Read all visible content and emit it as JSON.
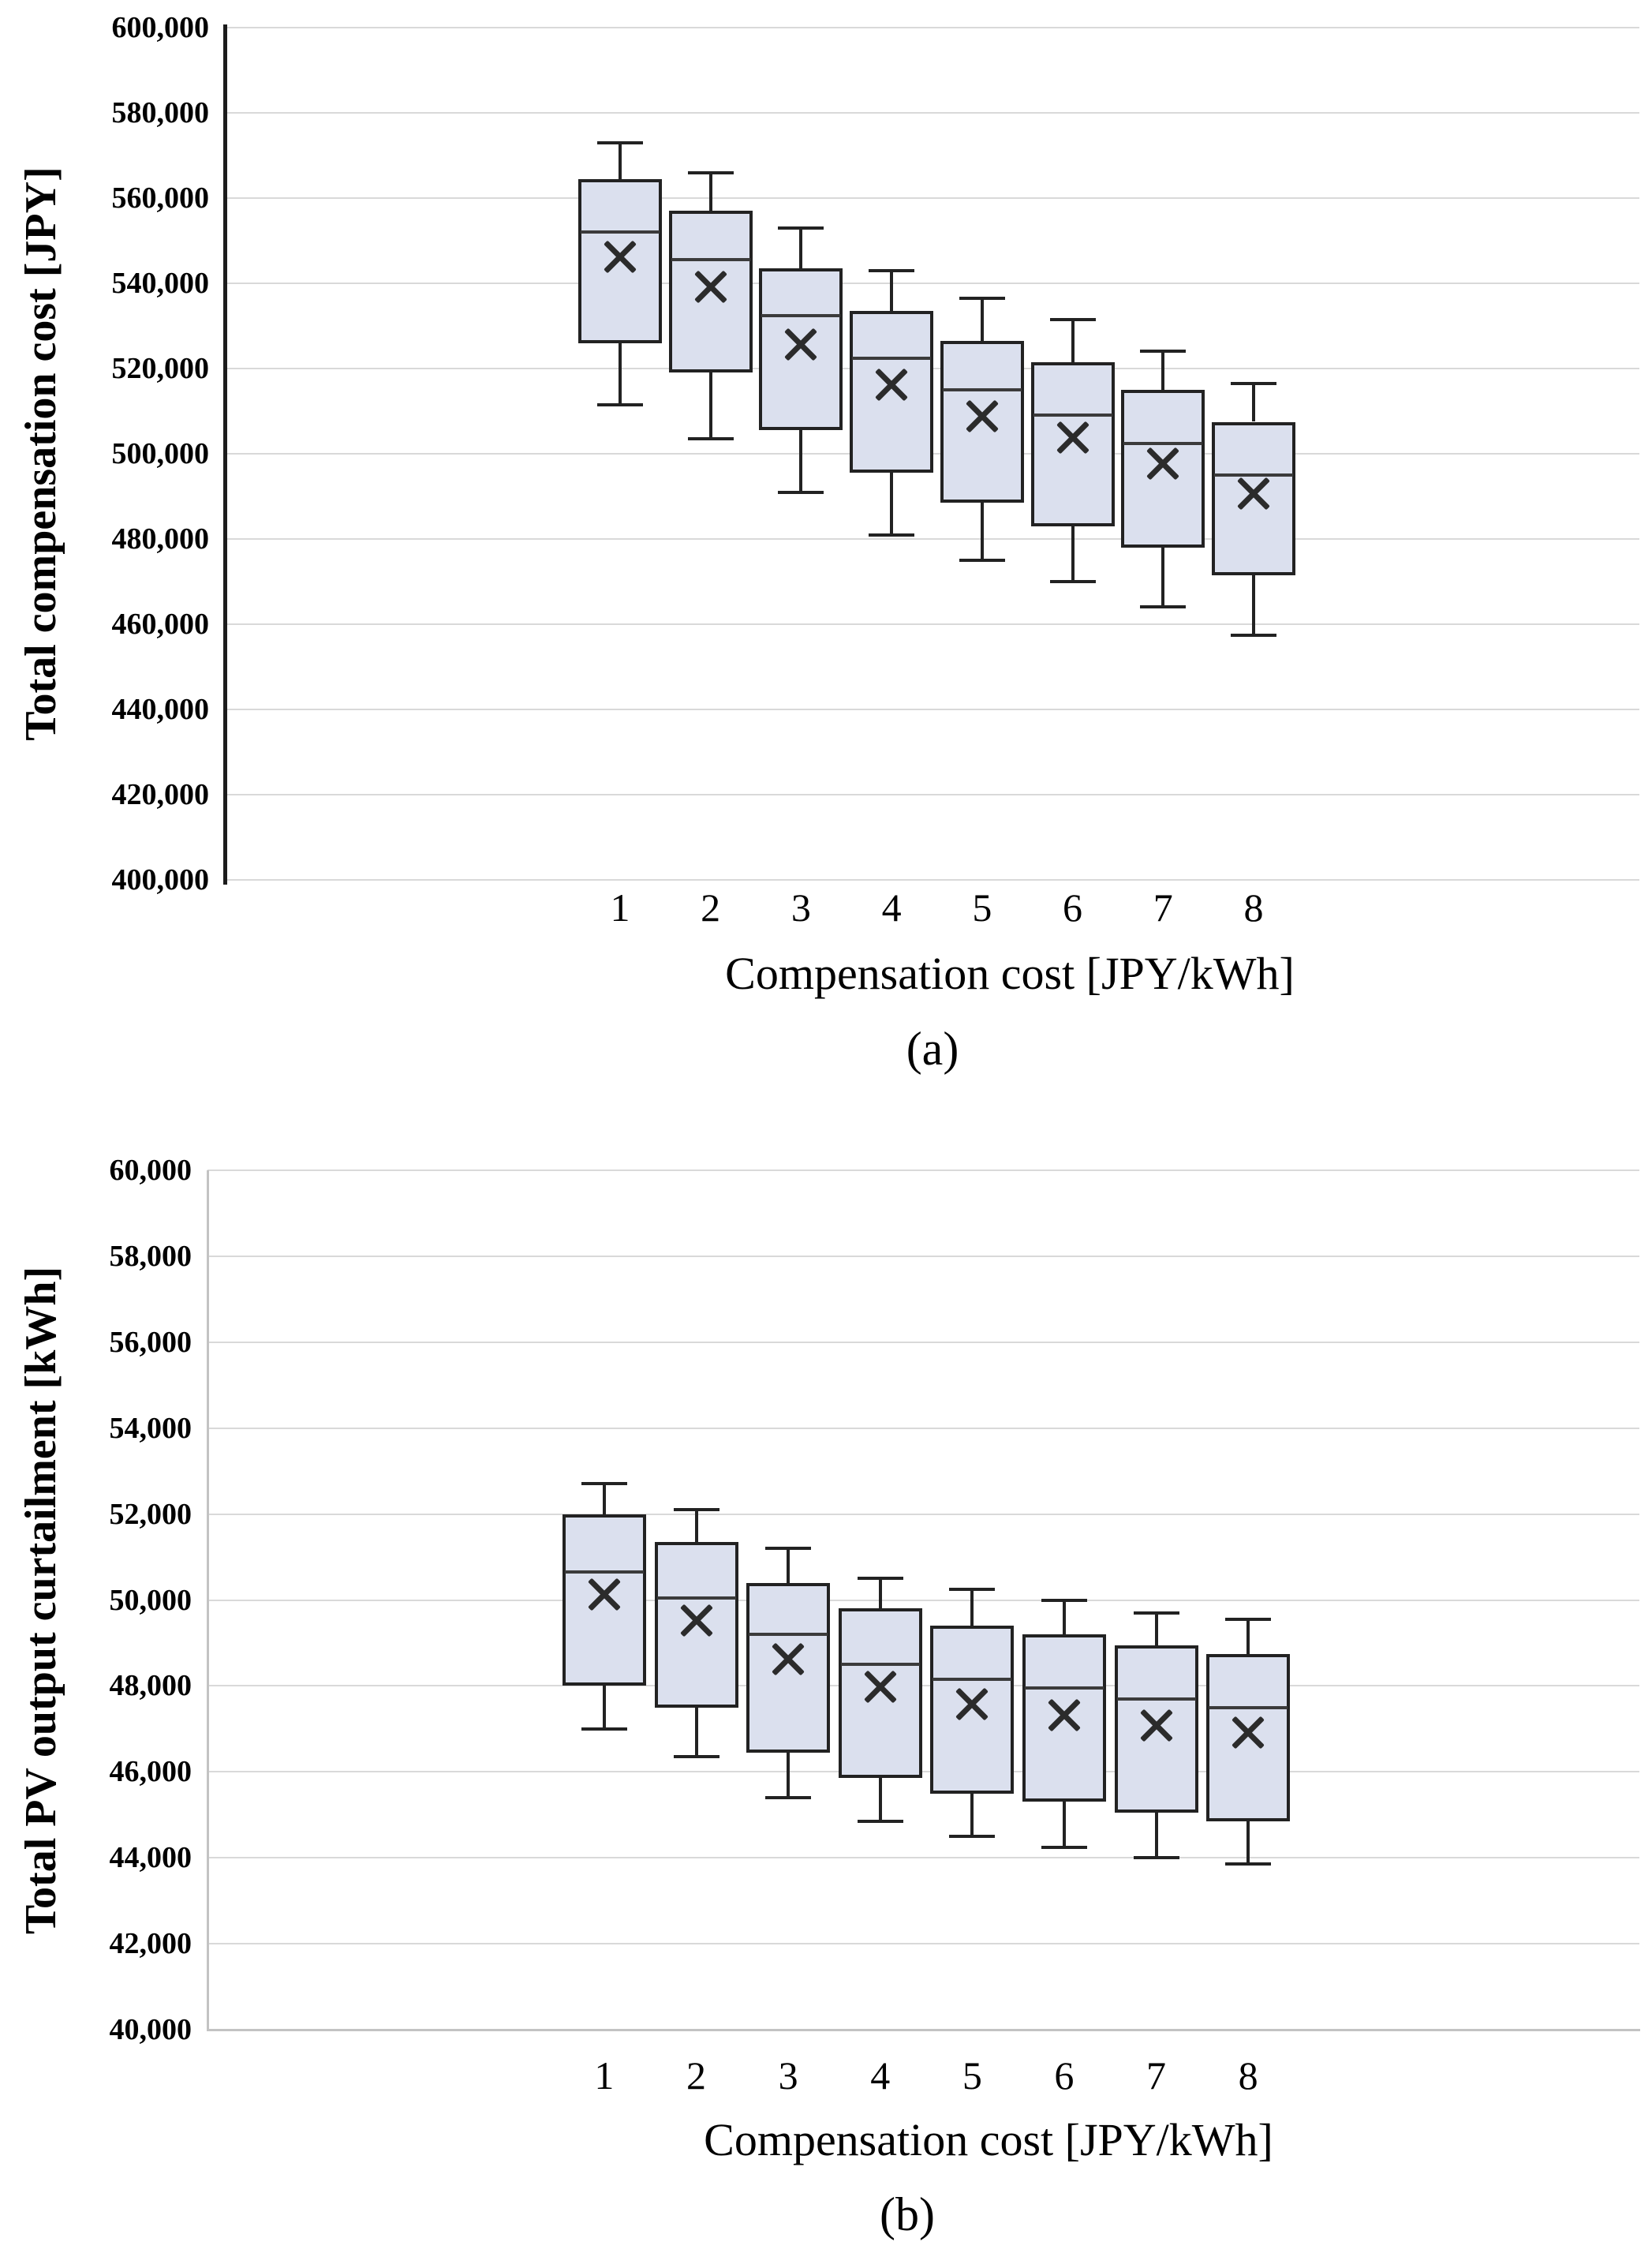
{
  "figure": {
    "background_color": "#ffffff",
    "box_fill_color": "#dbe0ee",
    "box_border_color": "#222222",
    "gridline_color": "#d9d9d9",
    "mean_marker_glyph": "x-cross"
  },
  "chart_data": [
    {
      "id": "a",
      "type": "box",
      "caption": "(a)",
      "xlabel": "Compensation cost [JPY/kWh]",
      "ylabel": "Total compensation cost [JPY]",
      "categories": [
        "1",
        "2",
        "3",
        "4",
        "5",
        "6",
        "7",
        "8"
      ],
      "y_min": 400000,
      "y_max": 600000,
      "y_tick_step": 20000,
      "y_ticks_top_to_bottom": [
        "600,000",
        "580,000",
        "560,000",
        "540,000",
        "520,000",
        "500,000",
        "480,000",
        "460,000",
        "440,000",
        "420,000",
        "400,000"
      ],
      "grid": true,
      "legend": "none",
      "series": [
        {
          "name": "Total compensation cost",
          "whisker_low": [
            511500,
            503500,
            491000,
            481000,
            475000,
            470000,
            464000,
            457500
          ],
          "q1": [
            526000,
            519000,
            505500,
            495500,
            488500,
            483000,
            478000,
            471500
          ],
          "median": [
            552000,
            545500,
            532500,
            522500,
            515000,
            509000,
            502500,
            495000
          ],
          "mean": [
            546500,
            539500,
            526000,
            516500,
            509000,
            504000,
            498000,
            491000
          ],
          "q3": [
            564500,
            557000,
            543500,
            533500,
            526500,
            521500,
            515000,
            507500
          ],
          "whisker_high": [
            573000,
            566000,
            553000,
            543000,
            536500,
            531500,
            524000,
            516500
          ]
        }
      ]
    },
    {
      "id": "b",
      "type": "box",
      "caption": "(b)",
      "xlabel": "Compensation cost [JPY/kWh]",
      "ylabel": "Total PV output curtailment [kWh]",
      "categories": [
        "1",
        "2",
        "3",
        "4",
        "5",
        "6",
        "7",
        "8"
      ],
      "y_min": 40000,
      "y_max": 60000,
      "y_tick_step": 2000,
      "y_ticks_top_to_bottom": [
        "60,000",
        "58,000",
        "56,000",
        "54,000",
        "52,000",
        "50,000",
        "48,000",
        "46,000",
        "44,000",
        "42,000",
        "40,000"
      ],
      "grid": true,
      "legend": "none",
      "series": [
        {
          "name": "Total PV output curtailment",
          "whisker_low": [
            47000,
            46350,
            45400,
            44850,
            44500,
            44250,
            44000,
            43850
          ],
          "q1": [
            48000,
            47500,
            46450,
            45850,
            45500,
            45300,
            45050,
            44850
          ],
          "median": [
            50650,
            50050,
            49200,
            48500,
            48150,
            47950,
            47700,
            47500
          ],
          "mean": [
            50150,
            49550,
            48650,
            48000,
            47600,
            47350,
            47100,
            46950
          ],
          "q3": [
            52000,
            51350,
            50400,
            49800,
            49400,
            49200,
            48950,
            48750
          ],
          "whisker_high": [
            52700,
            52100,
            51200,
            50500,
            50250,
            50000,
            49700,
            49550
          ]
        }
      ]
    }
  ]
}
